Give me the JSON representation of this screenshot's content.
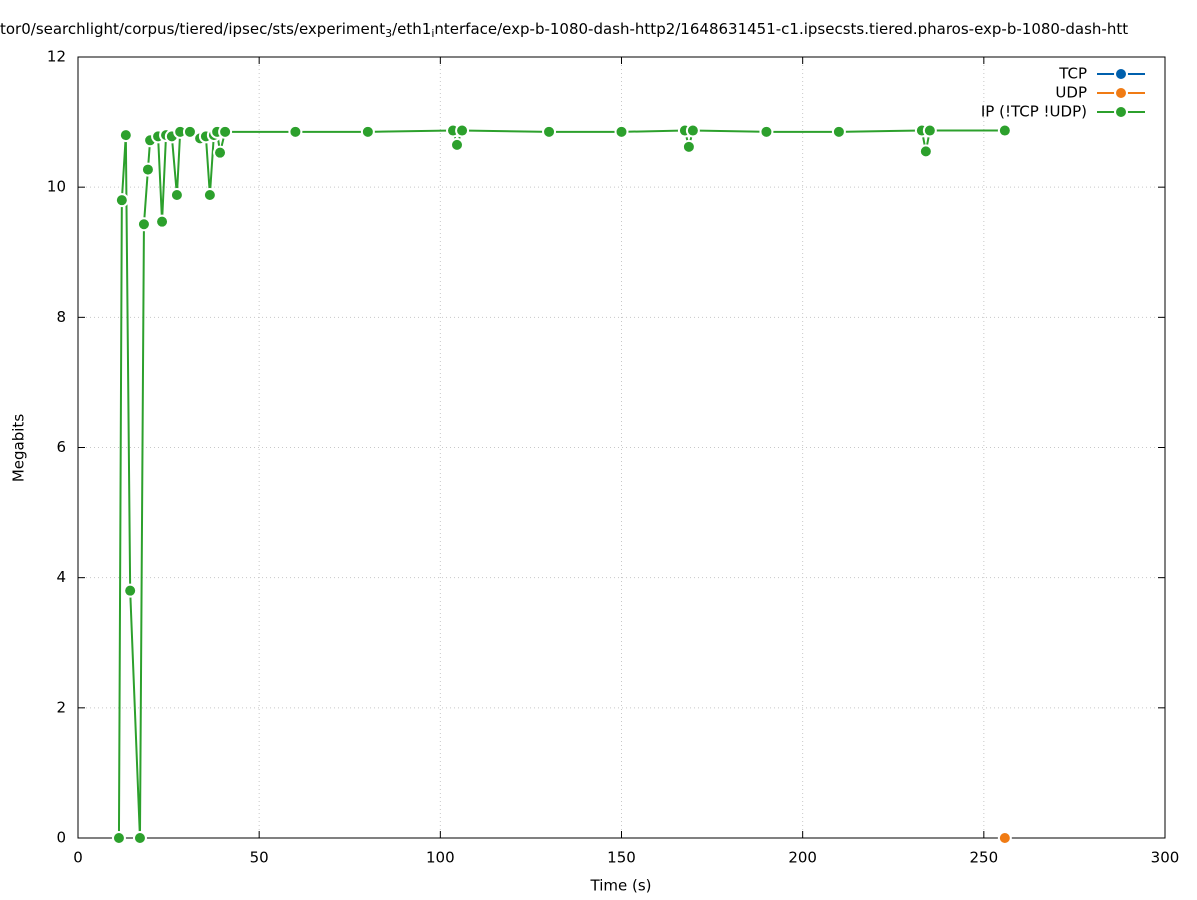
{
  "chart_data": {
    "type": "line",
    "title_parts": [
      {
        "text": "tor0/searchlight/corpus/tiered/ipsec/sts/experiment"
      },
      {
        "text": "3",
        "sub": true
      },
      {
        "text": "/eth1"
      },
      {
        "text": "i",
        "sub": true
      },
      {
        "text": "nterface/exp-b-1080-dash-http2/1648631451-c1.ipsecsts.tiered.pharos-exp-b-1080-dash-htt"
      }
    ],
    "x_label": "Time (s)",
    "y_label": "Megabits",
    "xlim": [
      0,
      300
    ],
    "xticks": [
      0,
      50,
      100,
      150,
      200,
      250,
      300
    ],
    "ylim": [
      0,
      12
    ],
    "yticks": [
      0,
      2,
      4,
      6,
      8,
      10,
      12
    ],
    "grid": true,
    "legend": "top-right",
    "series": [
      {
        "name": "TCP",
        "color": "#0060ad",
        "x": [],
        "values": []
      },
      {
        "name": "UDP",
        "color": "#f07b14",
        "x": [
          255.8
        ],
        "values": [
          0
        ]
      },
      {
        "name": "IP (!TCP  !UDP)",
        "color": "#2ca02c",
        "x": [
          11.3,
          12.1,
          13.2,
          14.4,
          17.1,
          18.2,
          19.3,
          19.9,
          22.1,
          23.2,
          24.3,
          25.9,
          27.3,
          28.2,
          30.9,
          33.7,
          35.3,
          36.4,
          37.5,
          38.4,
          39.2,
          40.6,
          60,
          80,
          103.5,
          104.6,
          106.0,
          130,
          150,
          167.5,
          168.6,
          169.7,
          190,
          210,
          232.9,
          234.0,
          235.1,
          255.8
        ],
        "values": [
          0,
          9.8,
          10.8,
          3.8,
          0,
          9.43,
          10.27,
          10.72,
          10.78,
          9.47,
          10.8,
          10.78,
          9.88,
          10.85,
          10.85,
          10.75,
          10.78,
          9.88,
          10.8,
          10.85,
          10.53,
          10.85,
          10.85,
          10.85,
          10.87,
          10.65,
          10.87,
          10.85,
          10.85,
          10.87,
          10.62,
          10.87,
          10.85,
          10.85,
          10.87,
          10.55,
          10.87,
          10.87
        ]
      }
    ]
  }
}
